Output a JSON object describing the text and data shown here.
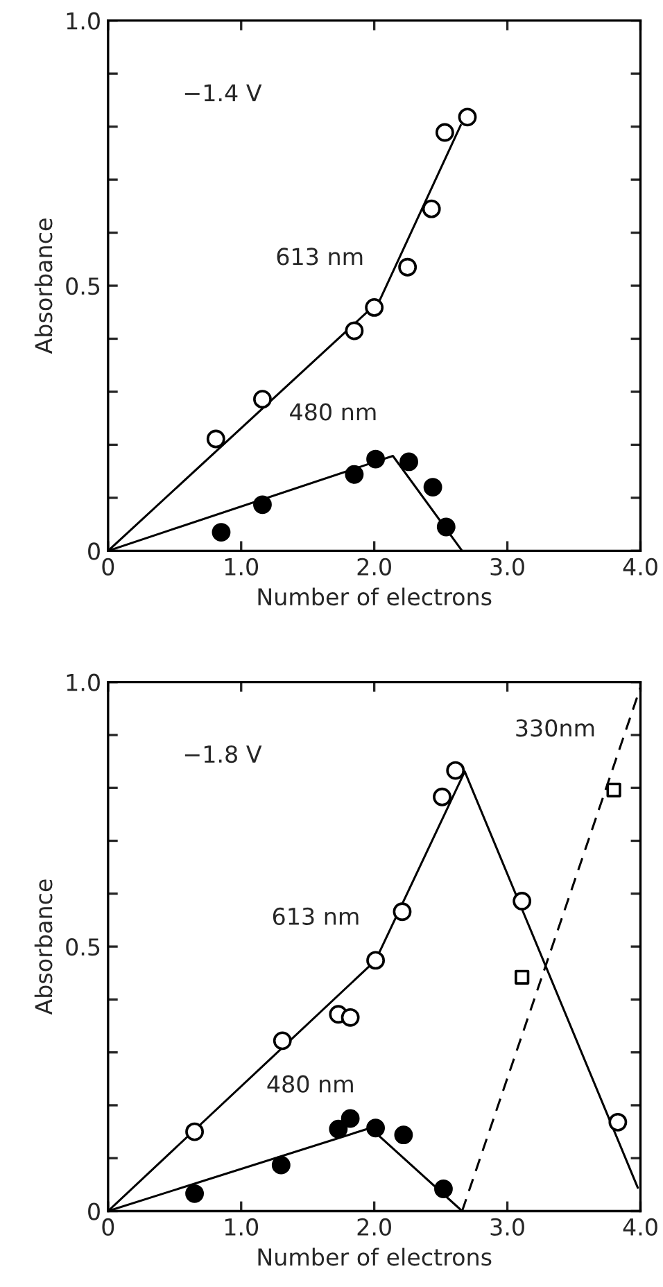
{
  "chart_data": [
    {
      "type": "scatter",
      "xlabel": "Number of electrons",
      "ylabel": "Absorbance",
      "annotations": [
        "−1.4 V",
        {
          "text": "613 nm",
          "x": 2.04,
          "y": 0.472
        },
        {
          "text": "480 nm",
          "x": 2.14,
          "y": 0.179
        }
      ],
      "xlim": [
        0,
        4
      ],
      "ylim": [
        0,
        1
      ],
      "xticks": [
        0,
        {
          "value": 1,
          "label": "1.0"
        },
        {
          "value": 2,
          "label": "2.0"
        },
        {
          "value": 3,
          "label": "3.0"
        },
        {
          "value": 4,
          "label": "4.0"
        }
      ],
      "yticks": [
        0,
        {
          "value": 0.1,
          "label": null
        },
        {
          "value": 0.2,
          "label": null
        },
        {
          "value": 0.3,
          "label": null
        },
        {
          "value": 0.4,
          "label": null
        },
        {
          "value": 0.5,
          "label": "0.5"
        },
        {
          "value": 0.6,
          "label": null
        },
        {
          "value": 0.7,
          "label": null
        },
        {
          "value": 0.8,
          "label": null
        },
        {
          "value": 0.9,
          "label": null
        },
        {
          "value": 1,
          "label": "1.0"
        }
      ],
      "grid": false,
      "legend": false,
      "series": [
        {
          "type": "line",
          "color": "#000000",
          "line_style": "solid",
          "marker": "none",
          "x": [
            0,
            2.04,
            2.65
          ],
          "values": [
            0,
            0.472,
            0.803
          ]
        },
        {
          "type": "line",
          "color": "#000000",
          "line_style": "solid",
          "marker": "none",
          "x": [
            0,
            2.14,
            2.66
          ],
          "values": [
            0,
            0.179,
            0
          ]
        },
        {
          "color": "#ffffff",
          "marker": "circle",
          "x": [
            0.81,
            1.16,
            1.85,
            2.0,
            2.25,
            2.43,
            2.53,
            2.7
          ],
          "values": [
            0.211,
            0.286,
            0.415,
            0.459,
            0.535,
            0.645,
            0.789,
            0.818
          ]
        },
        {
          "color": "#000000",
          "marker": "circle",
          "x": [
            0.85,
            1.16,
            1.85,
            2.01,
            2.26,
            2.44,
            2.54
          ],
          "values": [
            0.035,
            0.087,
            0.144,
            0.173,
            0.168,
            0.12,
            0.045
          ]
        }
      ]
    },
    {
      "type": "scatter",
      "xlabel": "Number of electrons",
      "ylabel": "Absorbance",
      "annotations": [
        "−1.8 V",
        {
          "text": "613 nm",
          "x": 2.01,
          "y": 0.474
        },
        {
          "text": "480 nm",
          "x": 1.97,
          "y": 0.157
        },
        {
          "text": "330nm",
          "x": 3.78,
          "y": 0.83
        }
      ],
      "xlim": [
        0,
        4
      ],
      "ylim": [
        0,
        1
      ],
      "xticks": [
        0,
        {
          "value": 1,
          "label": "1.0"
        },
        {
          "value": 2,
          "label": "2.0"
        },
        {
          "value": 3,
          "label": "3.0"
        },
        {
          "value": 4,
          "label": "4.0"
        }
      ],
      "yticks": [
        0,
        {
          "value": 0.1,
          "label": null
        },
        {
          "value": 0.2,
          "label": null
        },
        {
          "value": 0.3,
          "label": null
        },
        {
          "value": 0.4,
          "label": null
        },
        {
          "value": 0.5,
          "label": "0.5"
        },
        {
          "value": 0.6,
          "label": null
        },
        {
          "value": 0.7,
          "label": null
        },
        {
          "value": 0.8,
          "label": null
        },
        {
          "value": 0.9,
          "label": null
        },
        {
          "value": 1,
          "label": "1.0"
        }
      ],
      "grid": false,
      "legend": false,
      "series": [
        {
          "type": "line",
          "color": "#000000",
          "line_style": "solid",
          "marker": "none",
          "x": [
            0,
            2.01,
            2.68,
            3.98
          ],
          "values": [
            0,
            0.474,
            0.831,
            0.044
          ]
        },
        {
          "type": "line",
          "color": "#000000",
          "line_style": "solid",
          "marker": "none",
          "x": [
            0,
            1.97,
            2.66
          ],
          "values": [
            0,
            0.157,
            0
          ]
        },
        {
          "type": "line",
          "color": "#000000",
          "line_style": "dashed",
          "marker": "none",
          "x": [
            2.66,
            4.0
          ],
          "values": [
            0,
            0.99
          ]
        },
        {
          "color": "#ffffff",
          "marker": "circle",
          "x": [
            0.65,
            1.31,
            1.73,
            1.82,
            2.01,
            2.21,
            2.51,
            2.61,
            3.11,
            3.83
          ],
          "values": [
            0.15,
            0.322,
            0.372,
            0.366,
            0.474,
            0.566,
            0.783,
            0.833,
            0.586,
            0.168
          ]
        },
        {
          "color": "#000000",
          "marker": "circle",
          "x": [
            0.65,
            1.3,
            1.73,
            1.82,
            2.01,
            2.22,
            2.52
          ],
          "values": [
            0.033,
            0.087,
            0.155,
            0.175,
            0.157,
            0.144,
            0.042
          ]
        },
        {
          "color": "#ffffff",
          "marker": "square",
          "x": [
            3.11,
            3.8
          ],
          "values": [
            0.442,
            0.796
          ]
        }
      ]
    }
  ]
}
